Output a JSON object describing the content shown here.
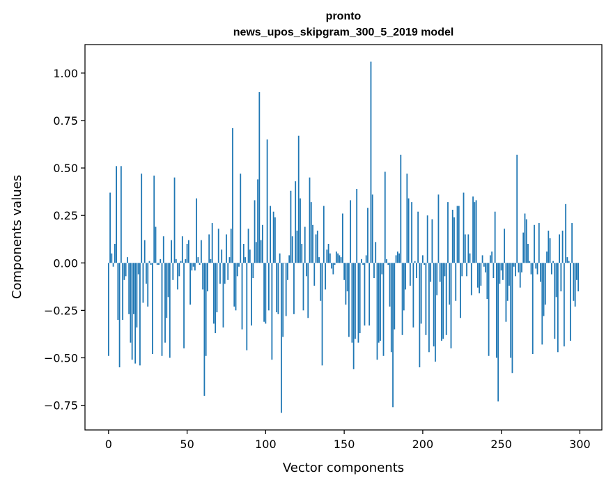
{
  "chart_data": {
    "type": "bar",
    "title_line1": "pronto",
    "title_line2": "news_upos_skipgram_300_5_2019 model",
    "xlabel": "Vector components",
    "ylabel": "Components values",
    "xlim": [
      -15,
      314
    ],
    "ylim": [
      -0.88,
      1.15
    ],
    "xticks": [
      0,
      50,
      100,
      150,
      200,
      250,
      300
    ],
    "xtick_labels": [
      "0",
      "50",
      "100",
      "150",
      "200",
      "250",
      "300"
    ],
    "yticks": [
      -0.75,
      -0.5,
      -0.25,
      0.0,
      0.25,
      0.5,
      0.75,
      1.0
    ],
    "ytick_labels": [
      "−0.75",
      "−0.50",
      "−0.25",
      "0.00",
      "0.25",
      "0.50",
      "0.75",
      "1.00"
    ],
    "bar_color": "#1f77b4",
    "values": [
      -0.49,
      0.37,
      0.05,
      -0.02,
      0.1,
      0.51,
      -0.3,
      -0.55,
      0.51,
      -0.3,
      -0.09,
      -0.07,
      0.03,
      -0.27,
      -0.42,
      -0.51,
      -0.27,
      -0.53,
      -0.34,
      -0.06,
      -0.54,
      0.47,
      -0.21,
      0.12,
      -0.11,
      -0.23,
      0.01,
      -0.01,
      -0.48,
      0.46,
      0.19,
      -0.01,
      -0.01,
      0.02,
      -0.49,
      0.14,
      -0.42,
      -0.29,
      -0.18,
      -0.5,
      0.12,
      -0.09,
      0.45,
      0.02,
      -0.14,
      -0.07,
      0.01,
      0.14,
      -0.45,
      0.02,
      0.1,
      0.12,
      -0.22,
      -0.04,
      -0.02,
      -0.04,
      0.34,
      0.03,
      -0.01,
      0.12,
      -0.14,
      -0.7,
      -0.49,
      -0.15,
      0.15,
      0.02,
      0.21,
      -0.32,
      -0.37,
      -0.26,
      0.18,
      -0.11,
      0.07,
      -0.34,
      -0.11,
      0.15,
      -0.09,
      0.03,
      0.18,
      0.71,
      -0.23,
      -0.25,
      -0.07,
      -0.02,
      0.47,
      -0.35,
      0.1,
      0.03,
      -0.46,
      0.18,
      0.07,
      -0.33,
      -0.08,
      0.33,
      0.11,
      0.44,
      0.9,
      0.12,
      0.2,
      -0.31,
      -0.32,
      0.65,
      -0.25,
      0.3,
      -0.51,
      0.27,
      0.24,
      -0.26,
      -0.27,
      0.05,
      -0.79,
      -0.39,
      0.0,
      -0.28,
      -0.09,
      0.04,
      0.38,
      0.14,
      -0.27,
      0.43,
      0.17,
      0.67,
      0.34,
      0.1,
      -0.25,
      0.19,
      -0.07,
      -0.29,
      0.45,
      0.32,
      0.2,
      -0.12,
      0.15,
      0.17,
      0.03,
      -0.2,
      -0.54,
      0.3,
      -0.14,
      0.07,
      0.1,
      0.05,
      -0.03,
      -0.06,
      -0.01,
      0.06,
      0.05,
      0.04,
      0.03,
      0.26,
      -0.09,
      -0.22,
      -0.15,
      -0.39,
      0.33,
      -0.42,
      -0.56,
      -0.4,
      0.39,
      -0.42,
      -0.37,
      0.02,
      -0.01,
      -0.33,
      0.04,
      0.29,
      -0.33,
      1.06,
      0.36,
      -0.08,
      0.11,
      -0.51,
      -0.42,
      -0.41,
      -0.06,
      -0.49,
      0.48,
      0.02,
      -0.01,
      -0.23,
      -0.47,
      -0.76,
      -0.35,
      0.04,
      0.06,
      0.05,
      0.57,
      -0.38,
      -0.25,
      -0.14,
      0.47,
      0.34,
      -0.12,
      0.32,
      -0.34,
      0.01,
      -0.08,
      0.27,
      -0.55,
      -0.32,
      0.04,
      -0.01,
      -0.38,
      0.25,
      -0.47,
      -0.1,
      0.23,
      -0.44,
      -0.52,
      -0.17,
      0.36,
      -0.1,
      -0.41,
      -0.4,
      -0.07,
      -0.38,
      0.32,
      -0.22,
      -0.45,
      0.28,
      0.24,
      -0.2,
      0.3,
      0.3,
      -0.29,
      -0.07,
      0.37,
      0.15,
      -0.07,
      0.15,
      0.05,
      -0.17,
      0.35,
      0.32,
      0.33,
      -0.13,
      -0.16,
      -0.12,
      0.04,
      -0.02,
      -0.05,
      -0.19,
      -0.49,
      0.04,
      0.06,
      -0.08,
      0.27,
      -0.5,
      -0.73,
      -0.11,
      -0.04,
      -0.09,
      0.18,
      -0.31,
      -0.2,
      -0.12,
      -0.5,
      -0.58,
      -0.02,
      -0.07,
      0.57,
      -0.05,
      -0.13,
      -0.05,
      0.16,
      0.26,
      0.23,
      0.1,
      0.01,
      -0.06,
      -0.48,
      0.2,
      -0.03,
      -0.06,
      0.21,
      -0.1,
      -0.43,
      -0.28,
      -0.22,
      0.06,
      0.17,
      0.13,
      -0.06,
      0.01,
      -0.4,
      -0.18,
      -0.47,
      0.15,
      -0.15,
      0.17,
      -0.44,
      0.31,
      0.03,
      0.01,
      -0.41,
      0.21,
      -0.2,
      -0.23,
      -0.09,
      -0.15
    ]
  }
}
